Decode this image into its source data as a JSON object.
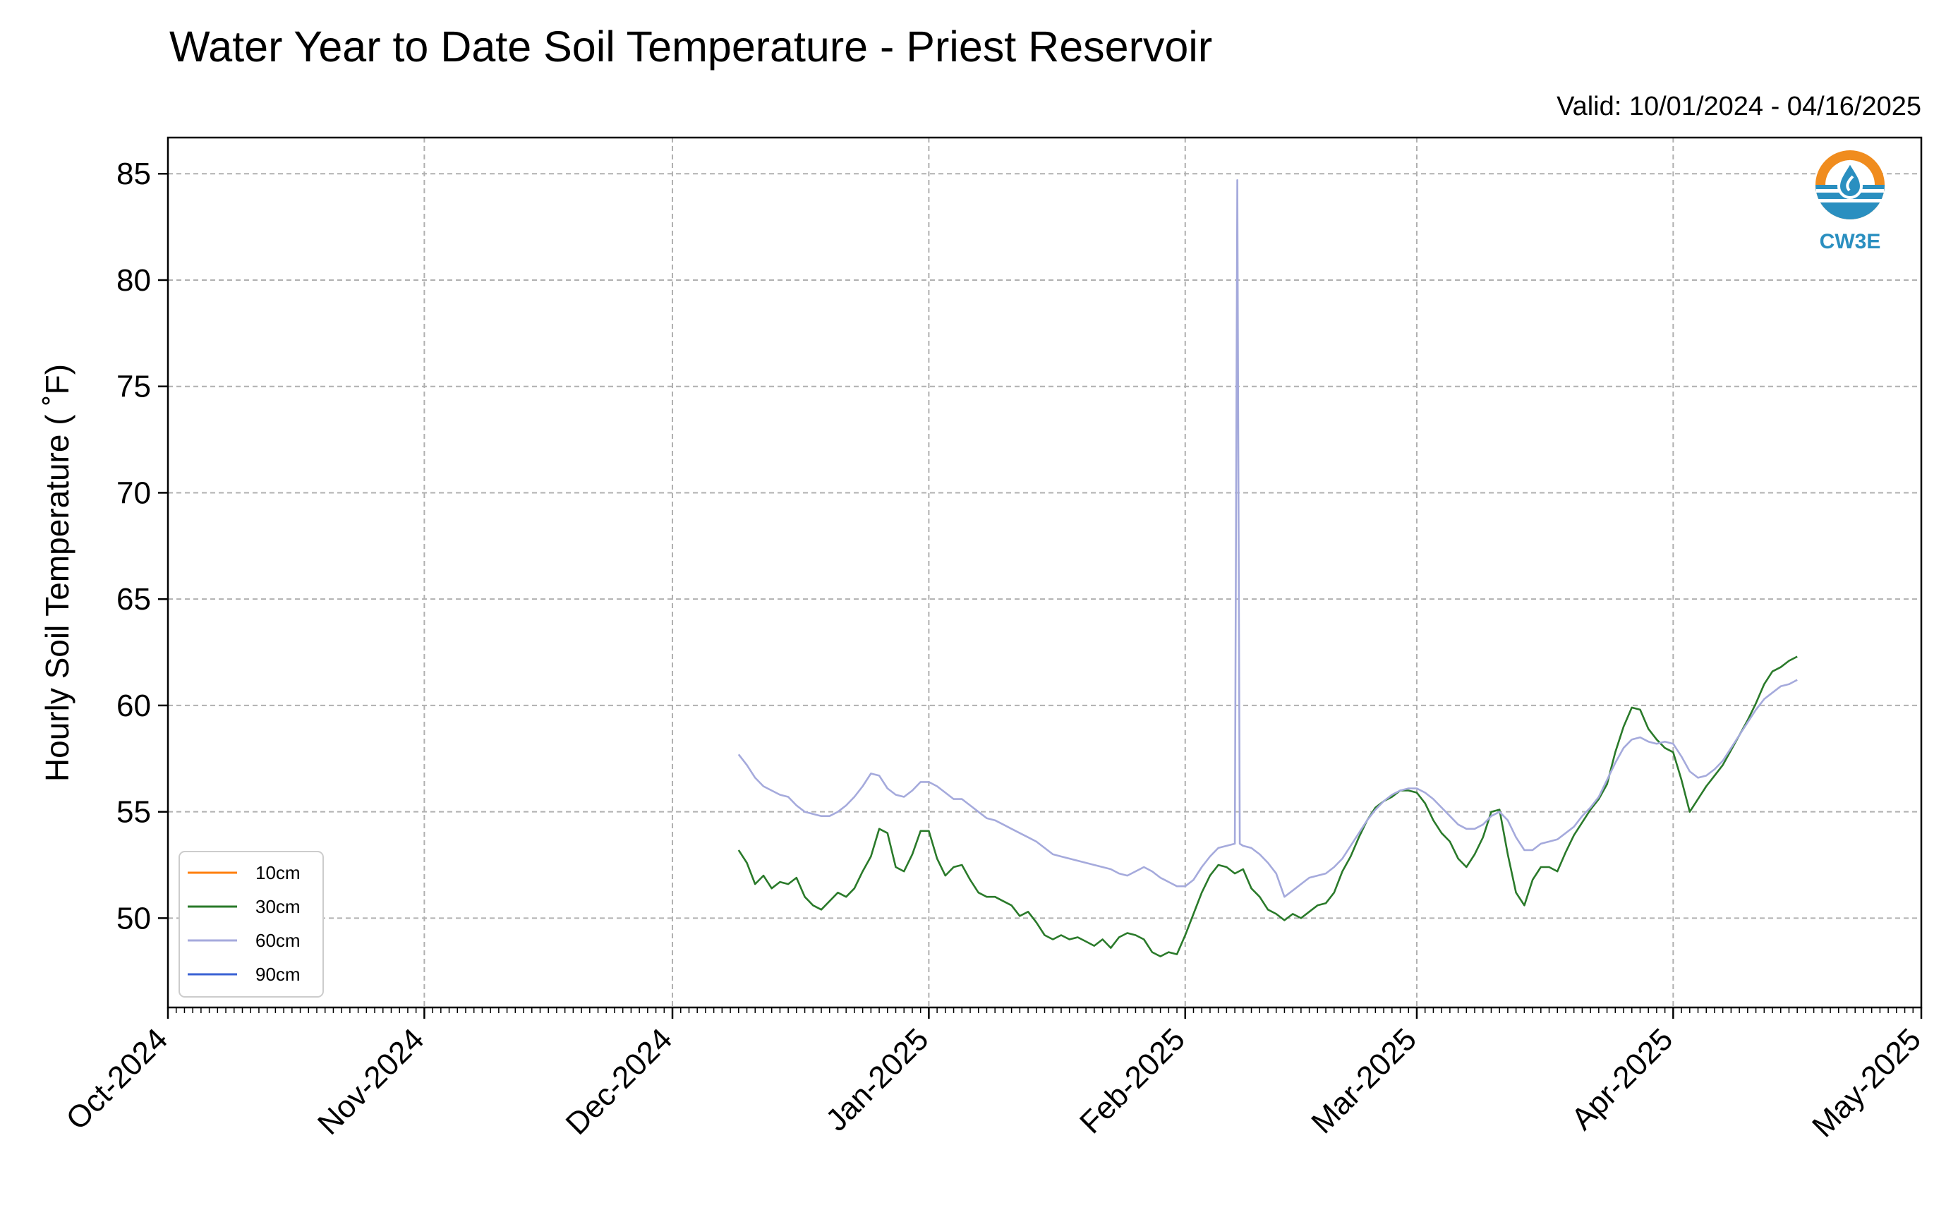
{
  "colors": {
    "grid": "#b0b0b0",
    "axis": "#000000",
    "logo_orange": "#f08c1e",
    "logo_blue": "#2a8fc0"
  },
  "logo": {
    "icon": "cw3e-water-drop-icon",
    "text": "CW3E"
  },
  "chart_data": {
    "type": "line",
    "title": "Water Year to Date Soil Temperature - Priest Reservoir",
    "subtitle": "Valid: 10/01/2024 - 04/16/2025",
    "ylabel": "Hourly Soil Temperature ( $^\\circ$F)",
    "ylabel_display": "Hourly Soil Temperature ( ˚F)",
    "xlim": [
      "2024-10-01",
      "2025-05-01"
    ],
    "ylim": [
      45.8,
      86.7
    ],
    "yticks": [
      50,
      55,
      60,
      65,
      70,
      75,
      80,
      85
    ],
    "xticks": [
      {
        "date": "2024-10-01",
        "label": "Oct-2024"
      },
      {
        "date": "2024-11-01",
        "label": "Nov-2024"
      },
      {
        "date": "2024-12-01",
        "label": "Dec-2024"
      },
      {
        "date": "2025-01-01",
        "label": "Jan-2025"
      },
      {
        "date": "2025-02-01",
        "label": "Feb-2025"
      },
      {
        "date": "2025-03-01",
        "label": "Mar-2025"
      },
      {
        "date": "2025-04-01",
        "label": "Apr-2025"
      },
      {
        "date": "2025-05-01",
        "label": "May-2025"
      }
    ],
    "grid": true,
    "legend_position": "lower-left",
    "series": [
      {
        "name": "10cm",
        "color": "#ff7f0e",
        "points": []
      },
      {
        "name": "30cm",
        "color": "#2a7a2a",
        "points": [
          [
            "2024-12-09",
            53.2
          ],
          [
            "2024-12-10",
            52.6
          ],
          [
            "2024-12-11",
            51.6
          ],
          [
            "2024-12-12",
            52.0
          ],
          [
            "2024-12-13",
            51.4
          ],
          [
            "2024-12-14",
            51.7
          ],
          [
            "2024-12-15",
            51.6
          ],
          [
            "2024-12-16",
            51.9
          ],
          [
            "2024-12-17",
            51.0
          ],
          [
            "2024-12-18",
            50.6
          ],
          [
            "2024-12-19",
            50.4
          ],
          [
            "2024-12-20",
            50.8
          ],
          [
            "2024-12-21",
            51.2
          ],
          [
            "2024-12-22",
            51.0
          ],
          [
            "2024-12-23",
            51.4
          ],
          [
            "2024-12-24",
            52.2
          ],
          [
            "2024-12-25",
            52.9
          ],
          [
            "2024-12-26",
            54.2
          ],
          [
            "2024-12-27",
            54.0
          ],
          [
            "2024-12-28",
            52.4
          ],
          [
            "2024-12-29",
            52.2
          ],
          [
            "2024-12-30",
            53.0
          ],
          [
            "2024-12-31",
            54.1
          ],
          [
            "2025-01-01",
            54.1
          ],
          [
            "2025-01-02",
            52.8
          ],
          [
            "2025-01-03",
            52.0
          ],
          [
            "2025-01-04",
            52.4
          ],
          [
            "2025-01-05",
            52.5
          ],
          [
            "2025-01-06",
            51.8
          ],
          [
            "2025-01-07",
            51.2
          ],
          [
            "2025-01-08",
            51.0
          ],
          [
            "2025-01-09",
            51.0
          ],
          [
            "2025-01-10",
            50.8
          ],
          [
            "2025-01-11",
            50.6
          ],
          [
            "2025-01-12",
            50.1
          ],
          [
            "2025-01-13",
            50.3
          ],
          [
            "2025-01-14",
            49.8
          ],
          [
            "2025-01-15",
            49.2
          ],
          [
            "2025-01-16",
            49.0
          ],
          [
            "2025-01-17",
            49.2
          ],
          [
            "2025-01-18",
            49.0
          ],
          [
            "2025-01-19",
            49.1
          ],
          [
            "2025-01-20",
            48.9
          ],
          [
            "2025-01-21",
            48.7
          ],
          [
            "2025-01-22",
            49.0
          ],
          [
            "2025-01-23",
            48.6
          ],
          [
            "2025-01-24",
            49.1
          ],
          [
            "2025-01-25",
            49.3
          ],
          [
            "2025-01-26",
            49.2
          ],
          [
            "2025-01-27",
            49.0
          ],
          [
            "2025-01-28",
            48.4
          ],
          [
            "2025-01-29",
            48.2
          ],
          [
            "2025-01-30",
            48.4
          ],
          [
            "2025-01-31",
            48.3
          ],
          [
            "2025-02-01",
            49.2
          ],
          [
            "2025-02-02",
            50.2
          ],
          [
            "2025-02-03",
            51.2
          ],
          [
            "2025-02-04",
            52.0
          ],
          [
            "2025-02-05",
            52.5
          ],
          [
            "2025-02-06",
            52.4
          ],
          [
            "2025-02-07",
            52.1
          ],
          [
            "2025-02-08",
            52.3
          ],
          [
            "2025-02-09",
            51.4
          ],
          [
            "2025-02-10",
            51.0
          ],
          [
            "2025-02-11",
            50.4
          ],
          [
            "2025-02-12",
            50.2
          ],
          [
            "2025-02-13",
            49.9
          ],
          [
            "2025-02-14",
            50.2
          ],
          [
            "2025-02-15",
            50.0
          ],
          [
            "2025-02-16",
            50.3
          ],
          [
            "2025-02-17",
            50.6
          ],
          [
            "2025-02-18",
            50.7
          ],
          [
            "2025-02-19",
            51.2
          ],
          [
            "2025-02-20",
            52.2
          ],
          [
            "2025-02-21",
            52.9
          ],
          [
            "2025-02-22",
            53.8
          ],
          [
            "2025-02-23",
            54.6
          ],
          [
            "2025-02-24",
            55.2
          ],
          [
            "2025-02-25",
            55.5
          ],
          [
            "2025-02-26",
            55.7
          ],
          [
            "2025-02-27",
            56.0
          ],
          [
            "2025-02-28",
            56.0
          ],
          [
            "2025-03-01",
            55.9
          ],
          [
            "2025-03-02",
            55.4
          ],
          [
            "2025-03-03",
            54.6
          ],
          [
            "2025-03-04",
            54.0
          ],
          [
            "2025-03-05",
            53.6
          ],
          [
            "2025-03-06",
            52.8
          ],
          [
            "2025-03-07",
            52.4
          ],
          [
            "2025-03-08",
            53.0
          ],
          [
            "2025-03-09",
            53.8
          ],
          [
            "2025-03-10",
            55.0
          ],
          [
            "2025-03-11",
            55.1
          ],
          [
            "2025-03-12",
            53.0
          ],
          [
            "2025-03-13",
            51.2
          ],
          [
            "2025-03-14",
            50.6
          ],
          [
            "2025-03-15",
            51.8
          ],
          [
            "2025-03-16",
            52.4
          ],
          [
            "2025-03-17",
            52.4
          ],
          [
            "2025-03-18",
            52.2
          ],
          [
            "2025-03-19",
            53.1
          ],
          [
            "2025-03-20",
            53.9
          ],
          [
            "2025-03-21",
            54.5
          ],
          [
            "2025-03-22",
            55.1
          ],
          [
            "2025-03-23",
            55.6
          ],
          [
            "2025-03-24",
            56.3
          ],
          [
            "2025-03-25",
            57.8
          ],
          [
            "2025-03-26",
            59.0
          ],
          [
            "2025-03-27",
            59.9
          ],
          [
            "2025-03-28",
            59.8
          ],
          [
            "2025-03-29",
            58.9
          ],
          [
            "2025-03-30",
            58.4
          ],
          [
            "2025-03-31",
            58.0
          ],
          [
            "2025-04-01",
            57.8
          ],
          [
            "2025-04-02",
            56.5
          ],
          [
            "2025-04-03",
            55.0
          ],
          [
            "2025-04-04",
            55.6
          ],
          [
            "2025-04-05",
            56.2
          ],
          [
            "2025-04-06",
            56.7
          ],
          [
            "2025-04-07",
            57.2
          ],
          [
            "2025-04-08",
            57.9
          ],
          [
            "2025-04-09",
            58.6
          ],
          [
            "2025-04-10",
            59.3
          ],
          [
            "2025-04-11",
            60.1
          ],
          [
            "2025-04-12",
            61.0
          ],
          [
            "2025-04-13",
            61.6
          ],
          [
            "2025-04-14",
            61.8
          ],
          [
            "2025-04-15",
            62.1
          ],
          [
            "2025-04-16",
            62.3
          ]
        ]
      },
      {
        "name": "60cm",
        "color": "#a5aadc",
        "points": [
          [
            "2024-12-09",
            57.7
          ],
          [
            "2024-12-10",
            57.2
          ],
          [
            "2024-12-11",
            56.6
          ],
          [
            "2024-12-12",
            56.2
          ],
          [
            "2024-12-13",
            56.0
          ],
          [
            "2024-12-14",
            55.8
          ],
          [
            "2024-12-15",
            55.7
          ],
          [
            "2024-12-16",
            55.3
          ],
          [
            "2024-12-17",
            55.0
          ],
          [
            "2024-12-18",
            54.9
          ],
          [
            "2024-12-19",
            54.8
          ],
          [
            "2024-12-20",
            54.8
          ],
          [
            "2024-12-21",
            55.0
          ],
          [
            "2024-12-22",
            55.3
          ],
          [
            "2024-12-23",
            55.7
          ],
          [
            "2024-12-24",
            56.2
          ],
          [
            "2024-12-25",
            56.8
          ],
          [
            "2024-12-26",
            56.7
          ],
          [
            "2024-12-27",
            56.1
          ],
          [
            "2024-12-28",
            55.8
          ],
          [
            "2024-12-29",
            55.7
          ],
          [
            "2024-12-30",
            56.0
          ],
          [
            "2024-12-31",
            56.4
          ],
          [
            "2025-01-01",
            56.4
          ],
          [
            "2025-01-02",
            56.2
          ],
          [
            "2025-01-03",
            55.9
          ],
          [
            "2025-01-04",
            55.6
          ],
          [
            "2025-01-05",
            55.6
          ],
          [
            "2025-01-06",
            55.3
          ],
          [
            "2025-01-07",
            55.0
          ],
          [
            "2025-01-08",
            54.7
          ],
          [
            "2025-01-09",
            54.6
          ],
          [
            "2025-01-10",
            54.4
          ],
          [
            "2025-01-11",
            54.2
          ],
          [
            "2025-01-12",
            54.0
          ],
          [
            "2025-01-13",
            53.8
          ],
          [
            "2025-01-14",
            53.6
          ],
          [
            "2025-01-15",
            53.3
          ],
          [
            "2025-01-16",
            53.0
          ],
          [
            "2025-01-17",
            52.9
          ],
          [
            "2025-01-18",
            52.8
          ],
          [
            "2025-01-19",
            52.7
          ],
          [
            "2025-01-20",
            52.6
          ],
          [
            "2025-01-21",
            52.5
          ],
          [
            "2025-01-22",
            52.4
          ],
          [
            "2025-01-23",
            52.3
          ],
          [
            "2025-01-24",
            52.1
          ],
          [
            "2025-01-25",
            52.0
          ],
          [
            "2025-01-26",
            52.2
          ],
          [
            "2025-01-27",
            52.4
          ],
          [
            "2025-01-28",
            52.2
          ],
          [
            "2025-01-29",
            51.9
          ],
          [
            "2025-01-30",
            51.7
          ],
          [
            "2025-01-31",
            51.5
          ],
          [
            "2025-02-01",
            51.5
          ],
          [
            "2025-02-02",
            51.8
          ],
          [
            "2025-02-03",
            52.4
          ],
          [
            "2025-02-04",
            52.9
          ],
          [
            "2025-02-05",
            53.3
          ],
          [
            "2025-02-06",
            53.4
          ],
          [
            "2025-02-07",
            53.5
          ],
          [
            "2025-02-07.3",
            84.7
          ],
          [
            "2025-02-07.6",
            53.5
          ],
          [
            "2025-02-08",
            53.4
          ],
          [
            "2025-02-09",
            53.3
          ],
          [
            "2025-02-10",
            53.0
          ],
          [
            "2025-02-11",
            52.6
          ],
          [
            "2025-02-12",
            52.1
          ],
          [
            "2025-02-13",
            51.0
          ],
          [
            "2025-02-14",
            51.3
          ],
          [
            "2025-02-15",
            51.6
          ],
          [
            "2025-02-16",
            51.9
          ],
          [
            "2025-02-17",
            52.0
          ],
          [
            "2025-02-18",
            52.1
          ],
          [
            "2025-02-19",
            52.4
          ],
          [
            "2025-02-20",
            52.8
          ],
          [
            "2025-02-21",
            53.4
          ],
          [
            "2025-02-22",
            54.0
          ],
          [
            "2025-02-23",
            54.6
          ],
          [
            "2025-02-24",
            55.1
          ],
          [
            "2025-02-25",
            55.5
          ],
          [
            "2025-02-26",
            55.8
          ],
          [
            "2025-02-27",
            56.0
          ],
          [
            "2025-02-28",
            56.1
          ],
          [
            "2025-03-01",
            56.1
          ],
          [
            "2025-03-02",
            55.9
          ],
          [
            "2025-03-03",
            55.6
          ],
          [
            "2025-03-04",
            55.2
          ],
          [
            "2025-03-05",
            54.8
          ],
          [
            "2025-03-06",
            54.4
          ],
          [
            "2025-03-07",
            54.2
          ],
          [
            "2025-03-08",
            54.2
          ],
          [
            "2025-03-09",
            54.4
          ],
          [
            "2025-03-10",
            54.8
          ],
          [
            "2025-03-11",
            55.0
          ],
          [
            "2025-03-12",
            54.6
          ],
          [
            "2025-03-13",
            53.8
          ],
          [
            "2025-03-14",
            53.2
          ],
          [
            "2025-03-15",
            53.2
          ],
          [
            "2025-03-16",
            53.5
          ],
          [
            "2025-03-17",
            53.6
          ],
          [
            "2025-03-18",
            53.7
          ],
          [
            "2025-03-19",
            54.0
          ],
          [
            "2025-03-20",
            54.3
          ],
          [
            "2025-03-21",
            54.8
          ],
          [
            "2025-03-22",
            55.2
          ],
          [
            "2025-03-23",
            55.7
          ],
          [
            "2025-03-24",
            56.5
          ],
          [
            "2025-03-25",
            57.3
          ],
          [
            "2025-03-26",
            58.0
          ],
          [
            "2025-03-27",
            58.4
          ],
          [
            "2025-03-28",
            58.5
          ],
          [
            "2025-03-29",
            58.3
          ],
          [
            "2025-03-30",
            58.2
          ],
          [
            "2025-03-31",
            58.3
          ],
          [
            "2025-04-01",
            58.2
          ],
          [
            "2025-04-02",
            57.6
          ],
          [
            "2025-04-03",
            56.9
          ],
          [
            "2025-04-04",
            56.6
          ],
          [
            "2025-04-05",
            56.7
          ],
          [
            "2025-04-06",
            57.0
          ],
          [
            "2025-04-07",
            57.4
          ],
          [
            "2025-04-08",
            58.0
          ],
          [
            "2025-04-09",
            58.6
          ],
          [
            "2025-04-10",
            59.2
          ],
          [
            "2025-04-11",
            59.8
          ],
          [
            "2025-04-12",
            60.3
          ],
          [
            "2025-04-13",
            60.6
          ],
          [
            "2025-04-14",
            60.9
          ],
          [
            "2025-04-15",
            61.0
          ],
          [
            "2025-04-16",
            61.2
          ]
        ]
      },
      {
        "name": "90cm",
        "color": "#3a62d4",
        "points": []
      }
    ]
  }
}
